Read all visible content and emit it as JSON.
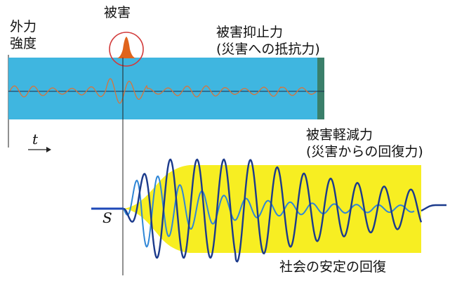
{
  "labels": {
    "external_force_line1": "外力",
    "external_force_line2": "強度",
    "damage": "被害",
    "suppression_line1": "被害抑止力",
    "suppression_line2": "(災害への抵抗力)",
    "reduction_line1": "被害軽減力",
    "reduction_line2": "(災害からの回復力)",
    "time_symbol": "t",
    "s_symbol": "S",
    "recovery": "社会の安定の回復"
  },
  "colors": {
    "band_fill": "#3fb6e0",
    "band_end": "#3a7f6a",
    "thin_wave": "#d9743a",
    "peak": "#e0641c",
    "circle": "#d23a3a",
    "yellow_area": "#f7ee22",
    "dark_wave": "#1b3a8c",
    "light_wave": "#2f86d6",
    "baseline": "#1e49b8",
    "axis": "#222222"
  },
  "icons": {
    "time_arrow": "right-arrow-icon"
  }
}
